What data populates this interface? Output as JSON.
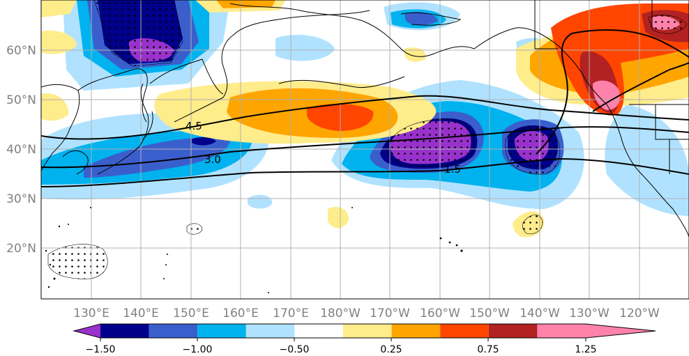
{
  "map": {
    "lat_labels": [
      "60°N",
      "50°N",
      "40°N",
      "30°N",
      "20°N"
    ],
    "lon_labels": [
      "130°E",
      "140°E",
      "150°E",
      "160°E",
      "170°E",
      "180°W",
      "170°W",
      "160°W",
      "150°W",
      "140°W",
      "130°W",
      "120°W"
    ],
    "contour_labels": [
      "4.5",
      "3.0",
      "1.5"
    ]
  },
  "colorbar": {
    "colors": [
      "#9932cc",
      "#00008b",
      "#3a5fcd",
      "#00b2ee",
      "#b0e2ff",
      "#ffffff",
      "#ffec8b",
      "#ffa500",
      "#ff4500",
      "#b22222",
      "#ff82ab"
    ],
    "tick_labels": [
      "−1.50",
      "−1.00",
      "−0.50",
      "0.25",
      "0.75",
      "1.25"
    ]
  },
  "colors": {
    "grid": "#b0b0b0",
    "coast": "#000000",
    "contour": "#000000"
  }
}
